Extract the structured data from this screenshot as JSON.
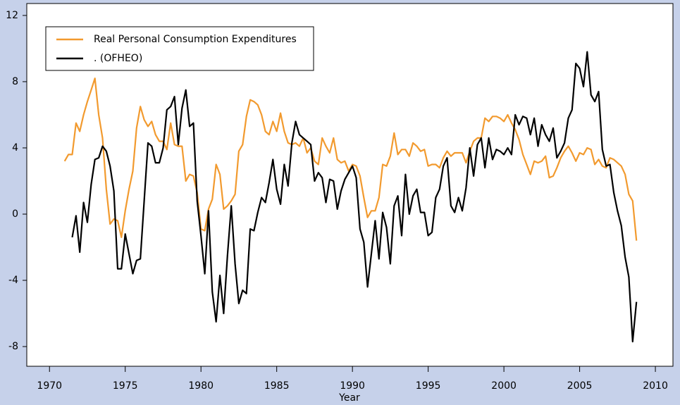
{
  "chart_data": {
    "type": "line",
    "x_label": "Year",
    "x": [
      1971,
      1971.25,
      1971.5,
      1971.75,
      1972,
      1972.25,
      1972.5,
      1972.75,
      1973,
      1973.25,
      1973.5,
      1973.75,
      1974,
      1974.25,
      1974.5,
      1974.75,
      1975,
      1975.25,
      1975.5,
      1975.75,
      1976,
      1976.25,
      1976.5,
      1976.75,
      1977,
      1977.25,
      1977.5,
      1977.75,
      1978,
      1978.25,
      1978.5,
      1978.75,
      1979,
      1979.25,
      1979.5,
      1979.75,
      1980,
      1980.25,
      1980.5,
      1980.75,
      1981,
      1981.25,
      1981.5,
      1981.75,
      1982,
      1982.25,
      1982.5,
      1982.75,
      1983,
      1983.25,
      1983.5,
      1983.75,
      1984,
      1984.25,
      1984.5,
      1984.75,
      1985,
      1985.25,
      1985.5,
      1985.75,
      1986,
      1986.25,
      1986.5,
      1986.75,
      1987,
      1987.25,
      1987.5,
      1987.75,
      1988,
      1988.25,
      1988.5,
      1988.75,
      1989,
      1989.25,
      1989.5,
      1989.75,
      1990,
      1990.25,
      1990.5,
      1990.75,
      1991,
      1991.25,
      1991.5,
      1991.75,
      1992,
      1992.25,
      1992.5,
      1992.75,
      1993,
      1993.25,
      1993.5,
      1993.75,
      1994,
      1994.25,
      1994.5,
      1994.75,
      1995,
      1995.25,
      1995.5,
      1995.75,
      1996,
      1996.25,
      1996.5,
      1996.75,
      1997,
      1997.25,
      1997.5,
      1997.75,
      1998,
      1998.25,
      1998.5,
      1998.75,
      1999,
      1999.25,
      1999.5,
      1999.75,
      2000,
      2000.25,
      2000.5,
      2000.75,
      2001,
      2001.25,
      2001.5,
      2001.75,
      2002,
      2002.25,
      2002.5,
      2002.75,
      2003,
      2003.25,
      2003.5,
      2003.75,
      2004,
      2004.25,
      2004.5,
      2004.75,
      2005,
      2005.25,
      2005.5,
      2005.75,
      2006,
      2006.25,
      2006.5,
      2006.75,
      2007,
      2007.25,
      2007.5,
      2007.75,
      2008,
      2008.25,
      2008.5,
      2008.75
    ],
    "series": [
      {
        "name": "Real Personal Consumption Expenditures",
        "color": "#f29a2e",
        "values": [
          3.2,
          3.6,
          3.6,
          5.5,
          5.0,
          6.0,
          6.8,
          7.5,
          8.2,
          6.0,
          4.6,
          1.5,
          -0.6,
          -0.3,
          -0.4,
          -1.4,
          0.2,
          1.5,
          2.6,
          5.2,
          6.5,
          5.7,
          5.3,
          5.6,
          4.8,
          4.4,
          4.4,
          3.9,
          5.5,
          4.2,
          4.1,
          4.1,
          2.0,
          2.4,
          2.3,
          1.3,
          -0.9,
          -1.0,
          0.3,
          0.9,
          3.0,
          2.4,
          0.3,
          0.5,
          0.8,
          1.2,
          3.8,
          4.2,
          5.9,
          6.9,
          6.8,
          6.6,
          6.0,
          5.0,
          4.8,
          5.6,
          5.0,
          6.1,
          5.0,
          4.3,
          4.2,
          4.3,
          4.1,
          4.6,
          3.7,
          4.0,
          3.2,
          3.0,
          4.6,
          4.1,
          3.7,
          4.6,
          3.3,
          3.1,
          3.2,
          2.6,
          3.0,
          2.9,
          2.3,
          1.0,
          -0.2,
          0.2,
          0.2,
          1.0,
          3.0,
          2.9,
          3.5,
          4.9,
          3.6,
          3.9,
          3.9,
          3.5,
          4.3,
          4.1,
          3.8,
          3.9,
          2.9,
          3.0,
          3.0,
          2.8,
          3.4,
          3.8,
          3.5,
          3.7,
          3.7,
          3.7,
          3.1,
          3.8,
          4.4,
          4.6,
          4.6,
          5.8,
          5.6,
          5.9,
          5.9,
          5.8,
          5.6,
          6.0,
          5.5,
          5.1,
          4.5,
          3.6,
          3.0,
          2.4,
          3.2,
          3.1,
          3.2,
          3.5,
          2.2,
          2.3,
          2.8,
          3.4,
          3.8,
          4.1,
          3.7,
          3.2,
          3.7,
          3.6,
          4.0,
          3.9,
          3.0,
          3.3,
          2.9,
          2.8,
          3.4,
          3.3,
          3.1,
          2.9,
          2.4,
          1.2,
          0.8,
          -1.6
        ]
      },
      {
        "name": ". (OFHEO)",
        "color": "#000000",
        "values": [
          null,
          null,
          -1.4,
          -0.1,
          -2.3,
          0.7,
          -0.5,
          1.8,
          3.3,
          3.4,
          4.1,
          3.8,
          2.9,
          1.4,
          -3.3,
          -3.3,
          -1.2,
          -2.4,
          -3.6,
          -2.8,
          -2.7,
          0.8,
          4.3,
          4.1,
          3.1,
          3.1,
          4.0,
          6.3,
          6.5,
          7.1,
          4.2,
          6.4,
          7.5,
          5.3,
          5.5,
          0.8,
          -1.3,
          -3.6,
          0.2,
          -4.7,
          -6.5,
          -3.7,
          -6.0,
          -2.5,
          0.5,
          -3.0,
          -5.4,
          -4.6,
          -4.8,
          -0.9,
          -1.0,
          0.1,
          1.0,
          0.7,
          1.9,
          3.3,
          1.5,
          0.6,
          3.0,
          1.7,
          4.3,
          5.6,
          4.8,
          4.6,
          4.4,
          4.2,
          2.0,
          2.5,
          2.2,
          0.7,
          2.1,
          2.0,
          0.3,
          1.4,
          2.1,
          2.5,
          2.9,
          2.2,
          -0.9,
          -1.7,
          -4.4,
          -2.4,
          -0.4,
          -2.7,
          0.1,
          -0.8,
          -3.0,
          0.5,
          1.1,
          -1.3,
          2.4,
          0.0,
          1.1,
          1.5,
          0.1,
          0.1,
          -1.3,
          -1.1,
          1.0,
          1.5,
          2.9,
          3.4,
          0.5,
          0.1,
          1.0,
          0.2,
          1.6,
          4.0,
          2.3,
          4.2,
          4.6,
          2.8,
          4.6,
          3.3,
          3.9,
          3.8,
          3.6,
          4.0,
          3.6,
          6.0,
          5.4,
          5.9,
          5.8,
          4.8,
          5.8,
          4.1,
          5.4,
          4.8,
          4.4,
          5.2,
          3.4,
          3.8,
          4.3,
          5.8,
          6.3,
          9.1,
          8.8,
          7.7,
          9.8,
          7.2,
          6.8,
          7.4,
          3.9,
          2.9,
          3.0,
          1.3,
          0.2,
          -0.7,
          -2.6,
          -3.8,
          -7.7,
          -5.3
        ]
      }
    ],
    "xlim": [
      1968.5,
      2011.16
    ],
    "xticks": [
      1970,
      1975,
      1980,
      1985,
      1990,
      1995,
      2000,
      2005,
      2010
    ],
    "ylim": [
      -9.19,
      12.72
    ],
    "yticks": [
      -8,
      -4,
      0,
      4,
      8,
      12
    ],
    "grid": false,
    "legend": "upper left"
  }
}
